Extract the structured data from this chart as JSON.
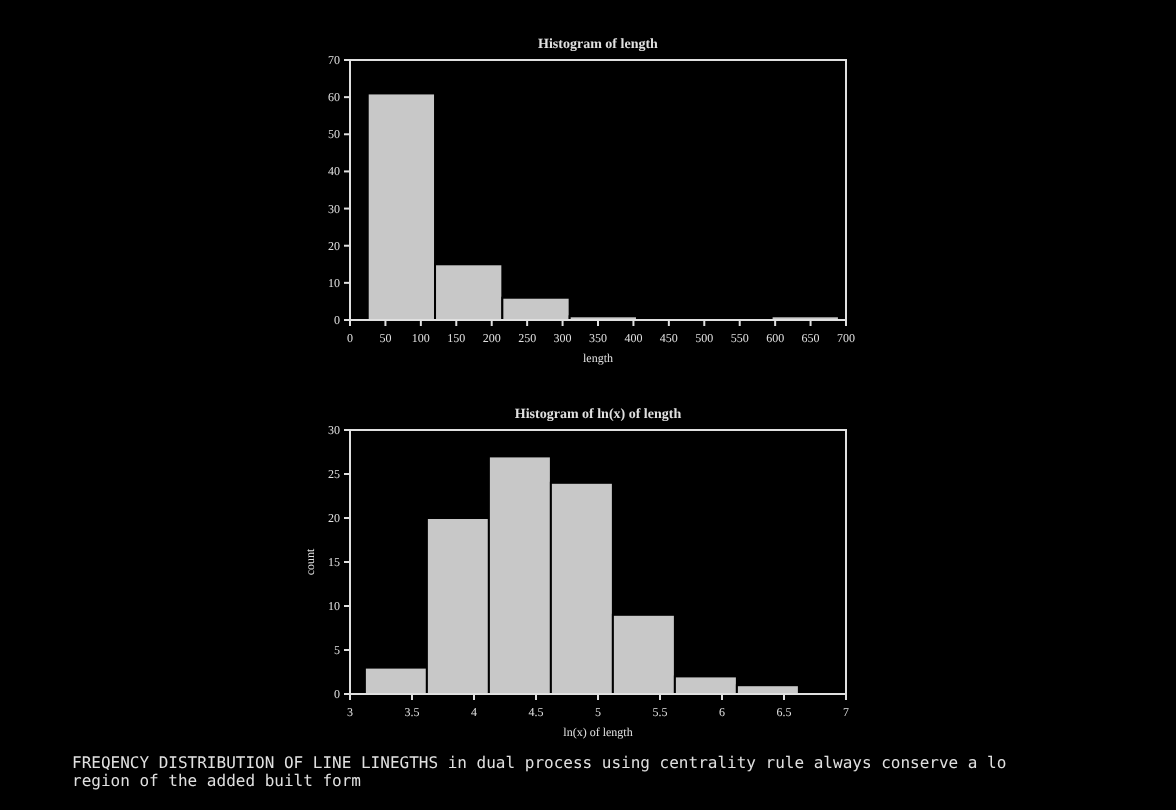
{
  "chart_data": [
    {
      "type": "histogram",
      "title": "Histogram of length",
      "xlabel": "length",
      "bins": [
        25,
        120,
        215,
        310,
        405,
        500,
        595,
        690
      ],
      "values": [
        61,
        15,
        6,
        1,
        0,
        0,
        1
      ],
      "color": "#c8c8c8",
      "xlim": [
        0,
        700
      ],
      "xticks": [
        0,
        50,
        100,
        150,
        200,
        250,
        300,
        350,
        400,
        450,
        500,
        550,
        600,
        650,
        700
      ],
      "ylim": [
        0,
        70
      ],
      "yticks": [
        0,
        10,
        20,
        30,
        40,
        50,
        60,
        70
      ],
      "grid": false
    },
    {
      "type": "histogram",
      "title": "Histogram of ln(x) of length",
      "xlabel": "ln(x) of length",
      "ylabel": "count",
      "bins": [
        3.12,
        3.62,
        4.12,
        4.62,
        5.12,
        5.62,
        6.12,
        6.62
      ],
      "values": [
        3,
        20,
        27,
        24,
        9,
        2,
        1
      ],
      "color": "#c8c8c8",
      "xlim": [
        3,
        7
      ],
      "xticks": [
        3,
        3.5,
        4,
        4.5,
        5,
        5.5,
        6,
        6.5,
        7
      ],
      "ylim": [
        0,
        30
      ],
      "yticks": [
        0,
        5,
        10,
        15,
        20,
        25,
        30
      ],
      "grid": false,
      "annotations": [
        "FREQENCY DISTRIBUTION OF LINE LINEGTHS in dual process using centrality rule always conserve a lo",
        "region of the added built form"
      ]
    }
  ]
}
